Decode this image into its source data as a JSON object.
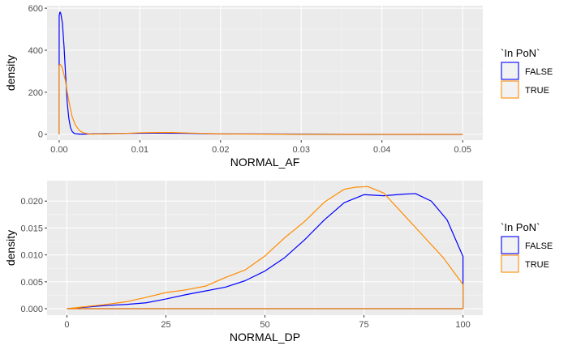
{
  "chart_data": [
    {
      "type": "line",
      "subtype": "density",
      "xlabel": "NORMAL_AF",
      "ylabel": "density",
      "xlim": [
        -0.0015,
        0.0525
      ],
      "ylim": [
        -28,
        612
      ],
      "x_ticks": [
        0.0,
        0.01,
        0.02,
        0.03,
        0.04,
        0.05
      ],
      "x_tick_labels": [
        "0.00",
        "0.01",
        "0.02",
        "0.03",
        "0.04",
        "0.05"
      ],
      "y_ticks": [
        0,
        200,
        400,
        600
      ],
      "y_tick_labels": [
        "0",
        "200",
        "400",
        "600"
      ],
      "grid": true,
      "legend": {
        "title": "`In PoN`",
        "position": "right",
        "entries": [
          {
            "label": "FALSE",
            "color": "#0000ff"
          },
          {
            "label": "TRUE",
            "color": "#ff8c00"
          }
        ]
      },
      "series": [
        {
          "name": "FALSE",
          "color": "#0000ff",
          "x": [
            0.0,
            0.0,
            0.0001,
            0.0002,
            0.0004,
            0.0006,
            0.0008,
            0.001,
            0.0012,
            0.0014,
            0.0016,
            0.0018,
            0.002,
            0.0025,
            0.003,
            0.004,
            0.008,
            0.012,
            0.016,
            0.02,
            0.03,
            0.04,
            0.05,
            0.05
          ],
          "y": [
            0,
            565,
            582,
            575,
            530,
            420,
            280,
            150,
            75,
            32,
            14,
            6,
            3,
            1,
            1,
            2,
            4,
            5,
            4,
            2,
            1,
            0,
            0,
            0
          ]
        },
        {
          "name": "TRUE",
          "color": "#ff8c00",
          "x": [
            0.0,
            0.0,
            0.0001,
            0.0003,
            0.0005,
            0.0008,
            0.001,
            0.0013,
            0.0016,
            0.002,
            0.0025,
            0.003,
            0.0035,
            0.004,
            0.006,
            0.008,
            0.01,
            0.012,
            0.014,
            0.016,
            0.018,
            0.02,
            0.025,
            0.03,
            0.04,
            0.05,
            0.05
          ],
          "y": [
            0,
            325,
            333,
            325,
            300,
            250,
            200,
            140,
            85,
            45,
            18,
            7,
            3,
            1,
            2,
            4,
            7,
            8,
            8,
            6,
            4,
            2,
            1,
            0,
            0,
            0,
            0
          ]
        }
      ]
    },
    {
      "type": "line",
      "subtype": "density",
      "xlabel": "NORMAL_DP",
      "ylabel": "density",
      "xlim": [
        -5,
        105
      ],
      "ylim": [
        -0.0012,
        0.0238
      ],
      "x_ticks": [
        0,
        25,
        50,
        75,
        100
      ],
      "x_tick_labels": [
        "0",
        "25",
        "50",
        "75",
        "100"
      ],
      "y_ticks": [
        0.0,
        0.005,
        0.01,
        0.015,
        0.02
      ],
      "y_tick_labels": [
        "0.000",
        "0.005",
        "0.010",
        "0.015",
        "0.020"
      ],
      "grid": true,
      "legend": {
        "title": "`In PoN`",
        "position": "right",
        "entries": [
          {
            "label": "FALSE",
            "color": "#0000ff"
          },
          {
            "label": "TRUE",
            "color": "#ff8c00"
          }
        ]
      },
      "series": [
        {
          "name": "FALSE",
          "color": "#0000ff",
          "x": [
            0,
            5,
            10,
            15,
            20,
            25,
            30,
            35,
            40,
            45,
            50,
            55,
            60,
            65,
            70,
            75,
            80,
            85,
            88,
            92,
            96,
            100,
            100,
            0
          ],
          "y": [
            0,
            0.0003,
            0.0006,
            0.0008,
            0.0011,
            0.0018,
            0.0026,
            0.0033,
            0.004,
            0.0052,
            0.007,
            0.0095,
            0.0128,
            0.0165,
            0.0197,
            0.0212,
            0.021,
            0.0213,
            0.0214,
            0.02,
            0.0165,
            0.0097,
            0,
            0
          ]
        },
        {
          "name": "TRUE",
          "color": "#ff8c00",
          "x": [
            0,
            5,
            10,
            15,
            20,
            25,
            30,
            35,
            40,
            45,
            50,
            55,
            60,
            65,
            70,
            73,
            76,
            80,
            85,
            90,
            95,
            100,
            100,
            0
          ],
          "y": [
            0,
            0.0004,
            0.0008,
            0.0013,
            0.0021,
            0.003,
            0.0035,
            0.0042,
            0.0058,
            0.0072,
            0.0098,
            0.0132,
            0.0162,
            0.0198,
            0.0222,
            0.0226,
            0.0227,
            0.0215,
            0.0175,
            0.0135,
            0.0095,
            0.0045,
            0,
            0
          ]
        }
      ]
    }
  ]
}
